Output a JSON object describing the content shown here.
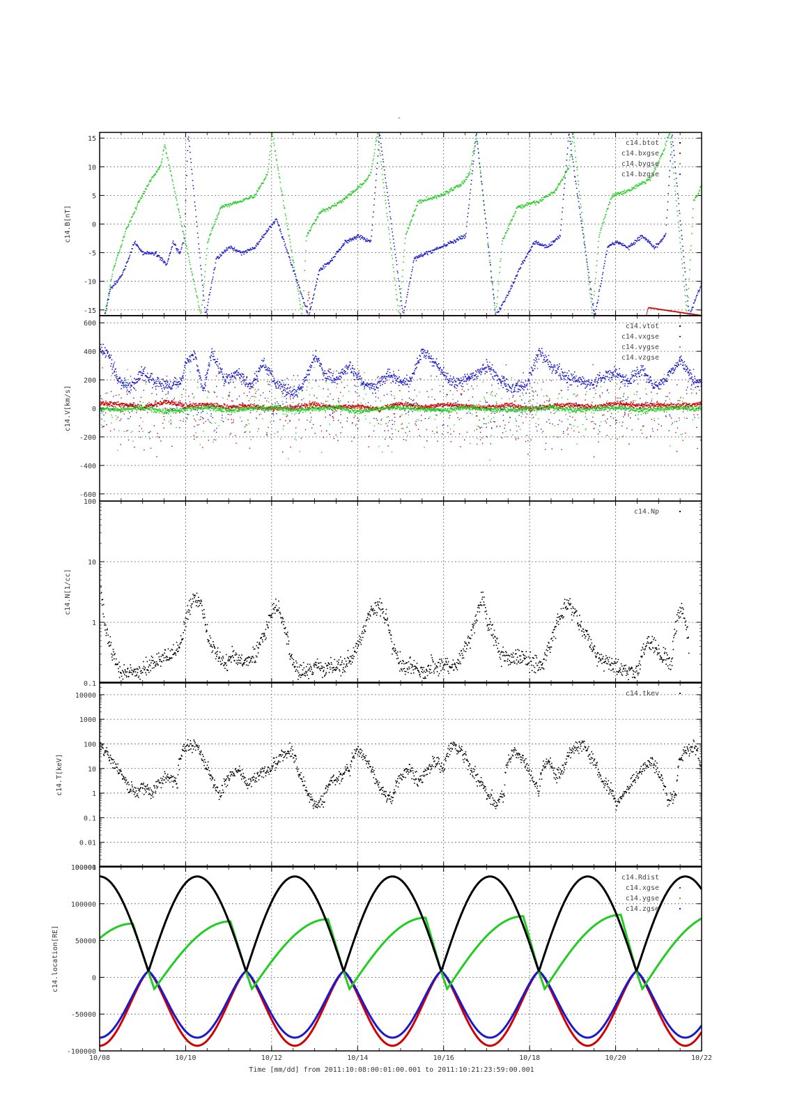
{
  "title": "-",
  "xlabel": "Time [mm/dd]  from 2011:10:08:00:01:00.001  to  2011:10:21:23:59:00.001",
  "x_ticks": [
    "10/08",
    "10/10",
    "10/12",
    "10/14",
    "10/16",
    "10/18",
    "10/20",
    "10/22"
  ],
  "chart_data": [
    {
      "type": "scatter",
      "ylabel": "c14.B[nT]",
      "ylim": [
        -16,
        16
      ],
      "yscale": "linear",
      "y_ticks": [
        15,
        10,
        5,
        0,
        -5,
        -10,
        -15
      ],
      "grid": true,
      "legend": [
        "c14.btot",
        "c14.bxgse",
        "c14.bygse",
        "c14.bzgse"
      ],
      "legend_placement": "top-right",
      "series": [
        {
          "name": "c14.btot",
          "color": "#000000",
          "x": [
            0,
            14
          ],
          "y": [
            -16,
            -16
          ]
        },
        {
          "name": "c14.bxgse",
          "color": "#d40000",
          "x": [
            0,
            2.5,
            4.8,
            4.85,
            4.9,
            7.0,
            9.5,
            11.5,
            12.7,
            12.75,
            14
          ],
          "y": [
            -15.9,
            -15.9,
            -15.9,
            -11.5,
            -15.9,
            -15.9,
            -15.9,
            -15.9,
            -15.9,
            -14.5,
            -15.9
          ]
        },
        {
          "name": "c14.bygse",
          "color": "#22cc22",
          "x": [
            0.1,
            0.3,
            0.6,
            0.9,
            1.2,
            1.4,
            1.5,
            2.35,
            2.5,
            2.8,
            3.2,
            3.6,
            3.9,
            4.0,
            4.7,
            4.8,
            5.1,
            5.6,
            6.1,
            6.3,
            6.45,
            6.95,
            7.1,
            7.4,
            7.9,
            8.4,
            8.6,
            8.75,
            9.2,
            9.35,
            9.7,
            10.2,
            10.6,
            10.9,
            11.0,
            11.45,
            11.6,
            11.9,
            12.3,
            12.8,
            13.05,
            13.25,
            13.65,
            13.8,
            14.0
          ],
          "y": [
            -16,
            -8,
            -1,
            4,
            8,
            10,
            14,
            -16,
            -3,
            3,
            4,
            5,
            9,
            16,
            -16,
            -2,
            2,
            4,
            7,
            9,
            16,
            -16,
            -2,
            4,
            5,
            7,
            9,
            16,
            -16,
            -3,
            3,
            4,
            6,
            10,
            16,
            -16,
            -2,
            5,
            6,
            8,
            12,
            16,
            -16,
            4,
            7
          ]
        },
        {
          "name": "c14.bzgse",
          "color": "#1a1acc",
          "x": [
            0.1,
            0.25,
            0.5,
            0.8,
            1.0,
            1.3,
            1.55,
            1.7,
            1.85,
            1.95,
            2.05,
            2.45,
            2.7,
            3.0,
            3.3,
            3.6,
            3.9,
            4.1,
            4.85,
            5.1,
            5.4,
            5.7,
            6.0,
            6.3,
            6.5,
            7.05,
            7.3,
            7.6,
            7.9,
            8.2,
            8.5,
            8.75,
            9.2,
            9.5,
            9.8,
            10.1,
            10.4,
            10.7,
            10.9,
            11.5,
            11.8,
            12.0,
            12.3,
            12.6,
            12.9,
            13.15,
            13.3,
            13.7,
            13.85,
            14.0
          ],
          "y": [
            -16,
            -11,
            -9,
            -3,
            -5,
            -5,
            -7,
            -3,
            -5,
            -3,
            16,
            -16,
            -6,
            -4,
            -5,
            -4,
            -1,
            1,
            -16,
            -8,
            -6,
            -3,
            -2,
            -3,
            16,
            -16,
            -6,
            -5,
            -4,
            -3,
            -2,
            16,
            -16,
            -12,
            -7,
            -3,
            -4,
            -2,
            16,
            -16,
            -4,
            -3,
            -4,
            -2,
            -4,
            -2,
            16,
            -16,
            -13,
            -10
          ]
        }
      ]
    },
    {
      "type": "scatter",
      "ylabel": "c14.V[km/s]",
      "ylim": [
        -650,
        650
      ],
      "yscale": "linear",
      "y_ticks": [
        600,
        400,
        200,
        0,
        -200,
        -400,
        -600
      ],
      "grid": true,
      "legend": [
        "c14.vtot",
        "c14.vxgse",
        "c14.vygse",
        "c14.vzgse"
      ],
      "legend_placement": "top-right",
      "series": [
        {
          "name": "c14.vtot",
          "color": "#000000",
          "x": [
            0,
            14
          ],
          "y": [
            0,
            0
          ]
        },
        {
          "name": "c14.vxgse",
          "color": "#d40000",
          "x": [
            0.0,
            0.5,
            1.0,
            1.5,
            2.0,
            2.5,
            3.0,
            3.5,
            4.0,
            4.5,
            5.0,
            5.5,
            6.0,
            6.5,
            7.0,
            7.5,
            8.0,
            8.5,
            9.0,
            9.5,
            10.0,
            10.5,
            11.0,
            11.5,
            12.0,
            12.5,
            13.0,
            13.5,
            14.0
          ],
          "y": [
            40,
            30,
            10,
            50,
            20,
            30,
            10,
            20,
            0,
            10,
            30,
            10,
            20,
            0,
            40,
            10,
            30,
            20,
            10,
            30,
            0,
            20,
            30,
            10,
            40,
            20,
            30,
            20,
            40
          ]
        },
        {
          "name": "c14.vygse",
          "color": "#22cc22",
          "x": [
            0.0,
            0.5,
            1.0,
            1.5,
            2.0,
            2.5,
            3.0,
            3.5,
            4.0,
            4.5,
            5.0,
            5.5,
            6.0,
            6.5,
            7.0,
            7.5,
            8.0,
            8.5,
            9.0,
            9.5,
            10.0,
            10.5,
            11.0,
            11.5,
            12.0,
            12.5,
            13.0,
            13.5,
            14.0
          ],
          "y": [
            0,
            -10,
            10,
            -20,
            0,
            10,
            -10,
            0,
            10,
            -10,
            0,
            10,
            -20,
            0,
            10,
            0,
            -10,
            10,
            0,
            -10,
            0,
            10,
            -10,
            0,
            10,
            -10,
            0,
            10,
            0
          ]
        },
        {
          "name": "c14.vzgse",
          "color": "#1a1acc",
          "x": [
            0.0,
            0.2,
            0.4,
            0.7,
            1.0,
            1.3,
            1.6,
            1.9,
            2.0,
            2.2,
            2.4,
            2.6,
            2.9,
            3.2,
            3.5,
            3.8,
            4.1,
            4.5,
            4.8,
            5.0,
            5.2,
            5.5,
            5.8,
            6.1,
            6.4,
            6.7,
            7.0,
            7.2,
            7.5,
            7.8,
            8.1,
            8.4,
            8.7,
            9.0,
            9.3,
            9.6,
            9.9,
            10.2,
            10.5,
            10.8,
            11.1,
            11.4,
            11.7,
            12.0,
            12.3,
            12.6,
            12.9,
            13.2,
            13.5,
            13.8,
            14.0
          ],
          "y": [
            420,
            380,
            200,
            150,
            260,
            180,
            160,
            200,
            350,
            380,
            120,
            400,
            200,
            250,
            150,
            320,
            180,
            100,
            220,
            380,
            250,
            200,
            300,
            180,
            150,
            250,
            180,
            200,
            400,
            320,
            200,
            180,
            240,
            300,
            200,
            150,
            150,
            400,
            300,
            240,
            200,
            180,
            220,
            250,
            200,
            280,
            160,
            220,
            350,
            200,
            180
          ]
        }
      ]
    },
    {
      "type": "scatter",
      "ylabel": "c14.N[1/cc]",
      "ylim": [
        0.1,
        100
      ],
      "yscale": "log",
      "y_ticks": [
        "100",
        "10",
        "1",
        "0.1"
      ],
      "grid": true,
      "legend": [
        "c14.Np"
      ],
      "legend_placement": "top-right",
      "series": [
        {
          "name": "c14.Np",
          "color": "#000000",
          "x": [
            0.02,
            0.1,
            0.2,
            0.3,
            0.4,
            0.5,
            0.9,
            1.7,
            1.9,
            2.05,
            2.2,
            2.35,
            2.5,
            2.7,
            2.9,
            3.1,
            3.4,
            3.6,
            3.85,
            4.05,
            4.25,
            4.4,
            4.6,
            5.7,
            5.9,
            6.1,
            6.3,
            6.5,
            6.65,
            6.8,
            7.0,
            7.3,
            7.5,
            7.8,
            8.3,
            8.6,
            8.75,
            8.9,
            9.0,
            9.3,
            10.3,
            10.5,
            10.7,
            10.9,
            11.0,
            11.2,
            11.5,
            11.8,
            12.5,
            12.75,
            13.05,
            13.3,
            13.5,
            13.7
          ],
          "y": [
            3,
            1,
            0.5,
            0.3,
            0.2,
            0.15,
            0.15,
            0.3,
            0.5,
            1.5,
            2.5,
            2,
            0.6,
            0.3,
            0.2,
            0.3,
            0.2,
            0.3,
            0.7,
            2,
            1.2,
            0.3,
            0.15,
            0.2,
            0.3,
            0.6,
            1.5,
            2,
            1.2,
            0.4,
            0.2,
            0.2,
            0.15,
            0.2,
            0.2,
            0.5,
            1.2,
            2.5,
            1,
            0.3,
            0.2,
            0.5,
            1.3,
            2,
            1.5,
            0.8,
            0.3,
            0.2,
            0.15,
            0.5,
            0.3,
            0.2,
            1.8,
            0.3
          ]
        }
      ]
    },
    {
      "type": "scatter",
      "ylabel": "c14.T[keV]",
      "ylim": [
        0.001,
        30000
      ],
      "yscale": "log",
      "y_ticks": [
        "10000",
        "1000",
        "100",
        "10",
        "1",
        "0.1",
        "0.01",
        "0.001"
      ],
      "grid": true,
      "legend": [
        "c14.tkev"
      ],
      "legend_placement": "top-right",
      "series": [
        {
          "name": "c14.tkev",
          "color": "#000000",
          "x": [
            0.0,
            0.2,
            0.4,
            0.6,
            0.8,
            1.0,
            1.2,
            1.4,
            1.6,
            1.8,
            2.0,
            2.2,
            2.4,
            2.6,
            2.8,
            3.0,
            3.2,
            3.4,
            3.6,
            3.8,
            4.0,
            4.2,
            4.4,
            4.6,
            4.8,
            5.0,
            5.2,
            5.4,
            5.6,
            5.8,
            6.0,
            6.2,
            6.4,
            6.6,
            6.8,
            7.0,
            7.2,
            7.4,
            7.6,
            7.8,
            8.0,
            8.2,
            8.4,
            8.6,
            8.8,
            9.0,
            9.2,
            9.4,
            9.6,
            9.8,
            10.0,
            10.2,
            10.4,
            10.6,
            10.8,
            11.0,
            11.2,
            11.4,
            11.6,
            11.8,
            12.0,
            12.2,
            12.4,
            12.6,
            12.8,
            13.0,
            13.2,
            13.4,
            13.6,
            13.8,
            14.0
          ],
          "y": [
            80,
            30,
            10,
            3,
            1,
            2,
            1,
            3,
            5,
            2,
            80,
            100,
            20,
            3,
            0.5,
            5,
            10,
            2,
            5,
            8,
            10,
            30,
            60,
            8,
            1,
            0.3,
            0.5,
            3,
            5,
            10,
            60,
            20,
            3,
            1,
            0.5,
            5,
            10,
            3,
            8,
            20,
            10,
            100,
            50,
            10,
            3,
            1,
            0.3,
            1,
            50,
            30,
            5,
            1,
            20,
            5,
            10,
            60,
            100,
            30,
            5,
            2,
            0.3,
            1,
            3,
            10,
            20,
            5,
            0.5,
            1,
            50,
            80,
            3
          ]
        }
      ]
    },
    {
      "type": "line",
      "ylabel": "c14.location[RE]",
      "ylim": [
        -100000,
        150000
      ],
      "yscale": "linear",
      "y_ticks": [
        "100000",
        "50000",
        "0",
        "-50000",
        "-100000"
      ],
      "y_ticks_top_overlap": "100000",
      "grid": true,
      "legend": [
        "c14.Rdist",
        "c14.xgse",
        "c14.ygse",
        "c14.zgse"
      ],
      "legend_placement": "top-right",
      "orbit_apogees": [
        0.0,
        2.27,
        4.54,
        6.81,
        9.08,
        11.35,
        13.62
      ],
      "orbit_period_days": 2.27,
      "series": [
        {
          "name": "c14.Rdist",
          "color": "#000000",
          "peak": 137000
        },
        {
          "name": "c14.xgse",
          "color": "#d40000",
          "min": -93000
        },
        {
          "name": "c14.ygse",
          "color": "#22cc22",
          "peaks": [
            73000,
            76000,
            79000,
            81000,
            83000,
            85000,
            86000
          ]
        },
        {
          "name": "c14.zgse",
          "color": "#1a1acc",
          "min": -82000
        }
      ]
    }
  ]
}
